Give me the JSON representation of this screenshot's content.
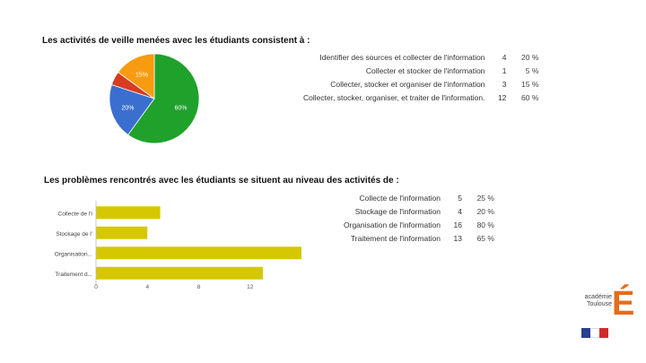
{
  "section1": {
    "heading": "Les activités de veille menées avec les étudiants consistent à :",
    "rows": [
      {
        "label": "Identifier des sources et collecter de l'information",
        "count": "4",
        "pct": "20 %"
      },
      {
        "label": "Collecter et stocker de l'information",
        "count": "1",
        "pct": "5 %"
      },
      {
        "label": "Collecter, stocker et organiser de l'information",
        "count": "3",
        "pct": "15 %"
      },
      {
        "label": "Collecter, stocker, organiser, et traiter de l'information.",
        "count": "12",
        "pct": "60 %"
      }
    ]
  },
  "section2": {
    "heading": "Les problèmes rencontrés avec les étudiants se situent au niveau des activités de :",
    "rows": [
      {
        "label": "Collecte de l'information",
        "count": "5",
        "pct": "25 %"
      },
      {
        "label": "Stockage de l'information",
        "count": "4",
        "pct": "20 %"
      },
      {
        "label": "Organisation de l'information",
        "count": "16",
        "pct": "80 %"
      },
      {
        "label": "Traitement de l'information",
        "count": "13",
        "pct": "65 %"
      }
    ]
  },
  "chart_data": [
    {
      "type": "pie",
      "slices": [
        {
          "value": 60,
          "label": "60%",
          "color": "#1fa12b"
        },
        {
          "value": 20,
          "label": "20%",
          "color": "#3a6fd0"
        },
        {
          "value": 5,
          "label": "",
          "color": "#d53c22"
        },
        {
          "value": 15,
          "label": "15%",
          "color": "#f99b10"
        }
      ]
    },
    {
      "type": "bar",
      "orientation": "horizontal",
      "categories": [
        "Collecte de l'i",
        "Stockage de l'",
        "Organisation...",
        "Traitement d..."
      ],
      "values": [
        5,
        4,
        16,
        13
      ],
      "color": "#d5c800",
      "xlim": [
        0,
        16
      ],
      "xticks": [
        "0",
        "4",
        "8",
        "12"
      ]
    }
  ],
  "logo": {
    "text_line1": "académie",
    "text_line2": "Toulouse",
    "letter": "É",
    "color": "#e46c1a"
  }
}
